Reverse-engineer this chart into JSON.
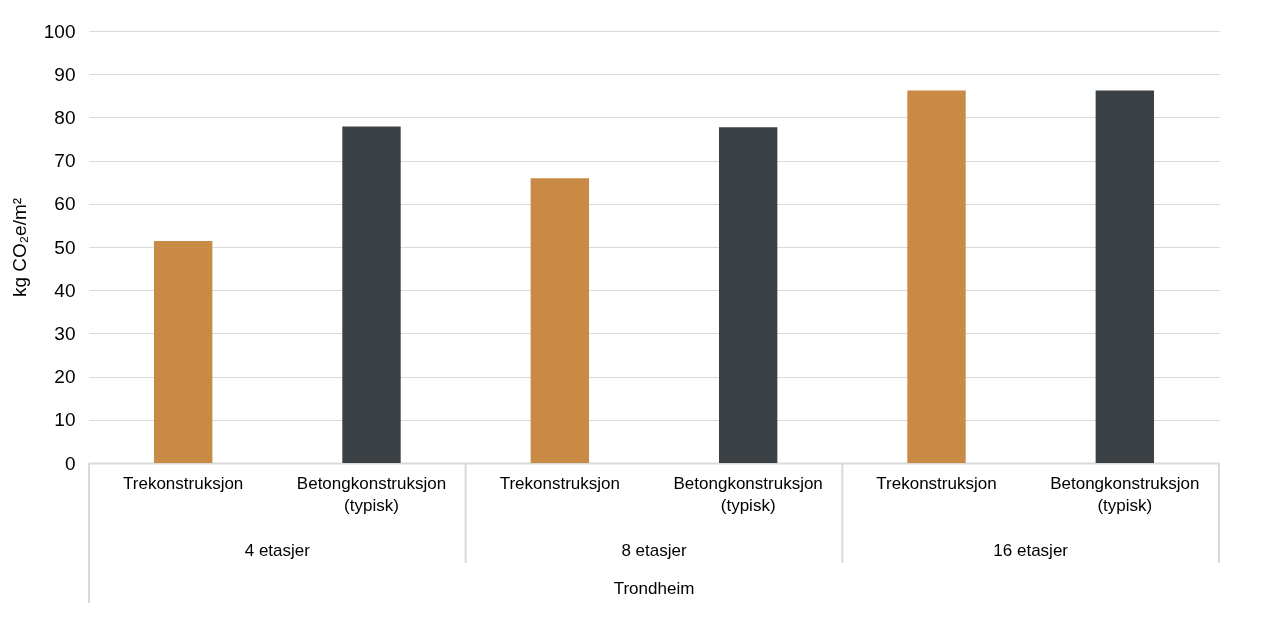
{
  "chart_data": {
    "type": "bar",
    "ylabel": "kg CO₂e/m²",
    "categories": [
      "Trekonstruksjon",
      "Betongkonstruksjon (typisk)",
      "Trekonstruksjon",
      "Betongkonstruksjon (typisk)",
      "Trekonstruksjon",
      "Betongkonstruksjon (typisk)"
    ],
    "values": [
      51.4,
      77.9,
      65.9,
      77.7,
      86.2,
      86.2
    ],
    "colors": [
      "#c98a45",
      "#3b4144",
      "#c98a45",
      "#3b4144",
      "#c98a45",
      "#3b4144"
    ],
    "annotations": [
      "4 etasjer",
      "8 etasjer",
      "16 etasjer",
      "Trondheim"
    ],
    "ylim": [
      0,
      100
    ],
    "yticks": [
      0,
      10,
      20,
      30,
      40,
      50,
      60,
      70,
      80,
      90,
      100
    ],
    "grid": "y"
  }
}
